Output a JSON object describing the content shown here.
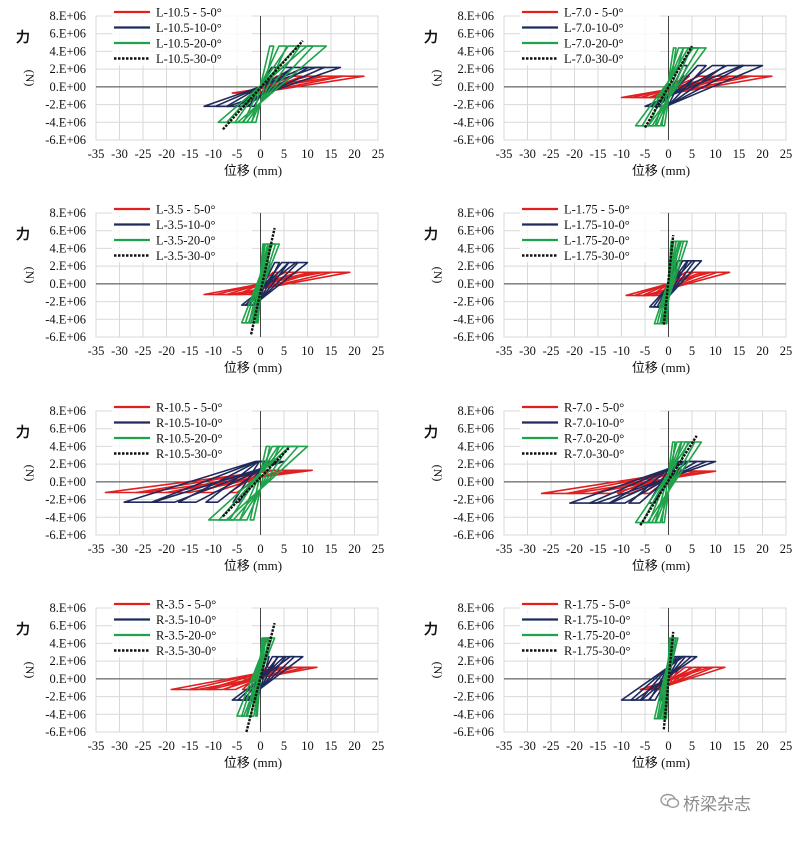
{
  "figure": {
    "watermark": "桥梁杂志",
    "colors": {
      "s5": "#e02020",
      "s10": "#1f2a5c",
      "s20": "#1fa34a",
      "s30": "#111111",
      "grid": "#d9d9d9",
      "axis": "#444444"
    }
  },
  "chart_data": [
    {
      "type": "line",
      "ylabel": "力 (N)",
      "xlabel": "位移 (mm)",
      "xlim": [
        -35,
        25
      ],
      "ylim": [
        -6000000,
        8000000
      ],
      "xticks": [
        "-35",
        "-30",
        "-25",
        "-20",
        "-15",
        "-10",
        "-5",
        "0",
        "5",
        "10",
        "15",
        "20",
        "25"
      ],
      "yticks": [
        "-6.E+06",
        "-4.E+06",
        "-2.E+06",
        "0.E+00",
        "2.E+06",
        "4.E+06",
        "6.E+06",
        "8.E+06"
      ],
      "series": [
        {
          "name": "L-10.5 - 5-0°",
          "amp": [
            22,
            1200000
          ],
          "neg": [
            -6,
            -700000
          ],
          "color_key": "s5"
        },
        {
          "name": "L-10.5-10-0°",
          "amp": [
            17,
            2200000
          ],
          "neg": [
            -12,
            -2200000
          ],
          "color_key": "s10"
        },
        {
          "name": "L-10.5-20-0°",
          "amp": [
            14,
            4600000
          ],
          "neg": [
            -9,
            -4000000
          ],
          "color_key": "s20"
        },
        {
          "name": "L-10.5-30-0°",
          "amp": [
            9,
            5200000
          ],
          "neg": [
            -8,
            -4800000
          ],
          "color_key": "s30"
        }
      ]
    },
    {
      "type": "line",
      "ylabel": "力 (N)",
      "xlabel": "位移 (mm)",
      "xlim": [
        -35,
        25
      ],
      "ylim": [
        -6000000,
        8000000
      ],
      "xticks": [
        "-35",
        "-30",
        "-25",
        "-20",
        "-15",
        "-10",
        "-5",
        "0",
        "5",
        "10",
        "15",
        "20",
        "25"
      ],
      "yticks": [
        "-6.E+06",
        "-4.E+06",
        "-2.E+06",
        "0.E+00",
        "2.E+06",
        "4.E+06",
        "6.E+06",
        "8.E+06"
      ],
      "series": [
        {
          "name": "L-7.0 - 5-0°",
          "amp": [
            22,
            1200000
          ],
          "neg": [
            -10,
            -1200000
          ],
          "color_key": "s5"
        },
        {
          "name": "L-7.0-10-0°",
          "amp": [
            20,
            2400000
          ],
          "neg": [
            -5,
            -2200000
          ],
          "color_key": "s10"
        },
        {
          "name": "L-7.0-20-0°",
          "amp": [
            8,
            4400000
          ],
          "neg": [
            -7,
            -4400000
          ],
          "color_key": "s20"
        },
        {
          "name": "L-7.0-30-0°",
          "amp": [
            5,
            4600000
          ],
          "neg": [
            -5,
            -4600000
          ],
          "color_key": "s30"
        }
      ]
    },
    {
      "type": "line",
      "ylabel": "力 (N)",
      "xlabel": "位移 (mm)",
      "xlim": [
        -35,
        25
      ],
      "ylim": [
        -6000000,
        8000000
      ],
      "xticks": [
        "-35",
        "-30",
        "-25",
        "-20",
        "-15",
        "-10",
        "-5",
        "0",
        "5",
        "10",
        "15",
        "20",
        "25"
      ],
      "yticks": [
        "-6.E+06",
        "-4.E+06",
        "-2.E+06",
        "0.E+00",
        "2.E+06",
        "4.E+06",
        "6.E+06",
        "8.E+06"
      ],
      "series": [
        {
          "name": "L-3.5 - 5-0°",
          "amp": [
            19,
            1300000
          ],
          "neg": [
            -12,
            -1200000
          ],
          "color_key": "s5"
        },
        {
          "name": "L-3.5-10-0°",
          "amp": [
            10,
            2400000
          ],
          "neg": [
            -4,
            -2400000
          ],
          "color_key": "s10"
        },
        {
          "name": "L-3.5-20-0°",
          "amp": [
            4,
            4500000
          ],
          "neg": [
            -4,
            -4400000
          ],
          "color_key": "s20"
        },
        {
          "name": "L-3.5-30-0°",
          "amp": [
            3,
            6300000
          ],
          "neg": [
            -2,
            -5700000
          ],
          "color_key": "s30"
        }
      ]
    },
    {
      "type": "line",
      "ylabel": "力 (N)",
      "xlabel": "位移 (mm)",
      "xlim": [
        -35,
        25
      ],
      "ylim": [
        -6000000,
        8000000
      ],
      "xticks": [
        "-35",
        "-30",
        "-25",
        "-20",
        "-15",
        "-10",
        "-5",
        "0",
        "5",
        "10",
        "15",
        "20",
        "25"
      ],
      "yticks": [
        "-6.E+06",
        "-4.E+06",
        "-2.E+06",
        "0.E+00",
        "2.E+06",
        "4.E+06",
        "6.E+06",
        "8.E+06"
      ],
      "series": [
        {
          "name": "L-1.75 - 5-0°",
          "amp": [
            13,
            1300000
          ],
          "neg": [
            -9,
            -1300000
          ],
          "color_key": "s5"
        },
        {
          "name": "L-1.75-10-0°",
          "amp": [
            7,
            2600000
          ],
          "neg": [
            -4,
            -2600000
          ],
          "color_key": "s10"
        },
        {
          "name": "L-1.75-20-0°",
          "amp": [
            4,
            4800000
          ],
          "neg": [
            -3,
            -4500000
          ],
          "color_key": "s20"
        },
        {
          "name": "L-1.75-30-0°",
          "amp": [
            1,
            5500000
          ],
          "neg": [
            -1,
            -4600000
          ],
          "color_key": "s30"
        }
      ]
    },
    {
      "type": "line",
      "ylabel": "力 (N)",
      "xlabel": "位移 (mm)",
      "xlim": [
        -35,
        25
      ],
      "ylim": [
        -6000000,
        8000000
      ],
      "xticks": [
        "-35",
        "-30",
        "-25",
        "-20",
        "-15",
        "-10",
        "-5",
        "0",
        "5",
        "10",
        "15",
        "20",
        "25"
      ],
      "yticks": [
        "-6.E+06",
        "-4.E+06",
        "-2.E+06",
        "0.E+00",
        "2.E+06",
        "4.E+06",
        "6.E+06",
        "8.E+06"
      ],
      "series": [
        {
          "name": "R-10.5 - 5-0°",
          "amp": [
            11,
            1300000
          ],
          "neg": [
            -33,
            -1200000
          ],
          "color_key": "s5"
        },
        {
          "name": "R-10.5-10-0°",
          "amp": [
            5,
            2300000
          ],
          "neg": [
            -29,
            -2300000
          ],
          "color_key": "s10"
        },
        {
          "name": "R-10.5-20-0°",
          "amp": [
            10,
            4000000
          ],
          "neg": [
            -11,
            -4300000
          ],
          "color_key": "s20"
        },
        {
          "name": "R-10.5-30-0°",
          "amp": [
            6,
            3800000
          ],
          "neg": [
            -8,
            -3900000
          ],
          "color_key": "s30"
        }
      ]
    },
    {
      "type": "line",
      "ylabel": "力 (N)",
      "xlabel": "位移 (mm)",
      "xlim": [
        -35,
        25
      ],
      "ylim": [
        -6000000,
        8000000
      ],
      "xticks": [
        "-35",
        "-30",
        "-25",
        "-20",
        "-15",
        "-10",
        "-5",
        "0",
        "5",
        "10",
        "15",
        "20",
        "25"
      ],
      "yticks": [
        "-6.E+06",
        "-4.E+06",
        "-2.E+06",
        "0.E+00",
        "2.E+06",
        "4.E+06",
        "6.E+06",
        "8.E+06"
      ],
      "series": [
        {
          "name": "R-7.0 - 5-0°",
          "amp": [
            10,
            1200000
          ],
          "neg": [
            -27,
            -1300000
          ],
          "color_key": "s5"
        },
        {
          "name": "R-7.0-10-0°",
          "amp": [
            10,
            2300000
          ],
          "neg": [
            -21,
            -2400000
          ],
          "color_key": "s10"
        },
        {
          "name": "R-7.0-20-0°",
          "amp": [
            7,
            4500000
          ],
          "neg": [
            -7,
            -4600000
          ],
          "color_key": "s20"
        },
        {
          "name": "R-7.0-30-0°",
          "amp": [
            6,
            5200000
          ],
          "neg": [
            -6,
            -4900000
          ],
          "color_key": "s30"
        }
      ]
    },
    {
      "type": "line",
      "ylabel": "力 (N)",
      "xlabel": "位移 (mm)",
      "xlim": [
        -35,
        25
      ],
      "ylim": [
        -6000000,
        8000000
      ],
      "xticks": [
        "-35",
        "-30",
        "-25",
        "-20",
        "-15",
        "-10",
        "-5",
        "0",
        "5",
        "10",
        "15",
        "20",
        "25"
      ],
      "yticks": [
        "-6.E+06",
        "-4.E+06",
        "-2.E+06",
        "0.E+00",
        "2.E+06",
        "4.E+06",
        "6.E+06",
        "8.E+06"
      ],
      "series": [
        {
          "name": "R-3.5 - 5-0°",
          "amp": [
            12,
            1300000
          ],
          "neg": [
            -19,
            -1200000
          ],
          "color_key": "s5"
        },
        {
          "name": "R-3.5-10-0°",
          "amp": [
            9,
            2500000
          ],
          "neg": [
            -6,
            -2400000
          ],
          "color_key": "s10"
        },
        {
          "name": "R-3.5-20-0°",
          "amp": [
            3,
            4600000
          ],
          "neg": [
            -5,
            -4200000
          ],
          "color_key": "s20"
        },
        {
          "name": "R-3.5-30-0°",
          "amp": [
            3,
            6300000
          ],
          "neg": [
            -3,
            -6000000
          ],
          "color_key": "s30"
        }
      ]
    },
    {
      "type": "line",
      "ylabel": "力 (N)",
      "xlabel": "位移 (mm)",
      "xlim": [
        -35,
        25
      ],
      "ylim": [
        -6000000,
        8000000
      ],
      "xticks": [
        "-35",
        "-30",
        "-25",
        "-20",
        "-15",
        "-10",
        "-5",
        "0",
        "5",
        "10",
        "15",
        "20",
        "25"
      ],
      "yticks": [
        "-6.E+06",
        "-4.E+06",
        "-2.E+06",
        "0.E+00",
        "2.E+06",
        "4.E+06",
        "6.E+06",
        "8.E+06"
      ],
      "series": [
        {
          "name": "R-1.75 - 5-0°",
          "amp": [
            12,
            1300000
          ],
          "neg": [
            -6,
            -1200000
          ],
          "color_key": "s5"
        },
        {
          "name": "R-1.75-10-0°",
          "amp": [
            6,
            2500000
          ],
          "neg": [
            -10,
            -2400000
          ],
          "color_key": "s10"
        },
        {
          "name": "R-1.75-20-0°",
          "amp": [
            2,
            4600000
          ],
          "neg": [
            -3,
            -4500000
          ],
          "color_key": "s20"
        },
        {
          "name": "R-1.75-30-0°",
          "amp": [
            1,
            5300000
          ],
          "neg": [
            -1,
            -5700000
          ],
          "color_key": "s30"
        }
      ]
    }
  ]
}
